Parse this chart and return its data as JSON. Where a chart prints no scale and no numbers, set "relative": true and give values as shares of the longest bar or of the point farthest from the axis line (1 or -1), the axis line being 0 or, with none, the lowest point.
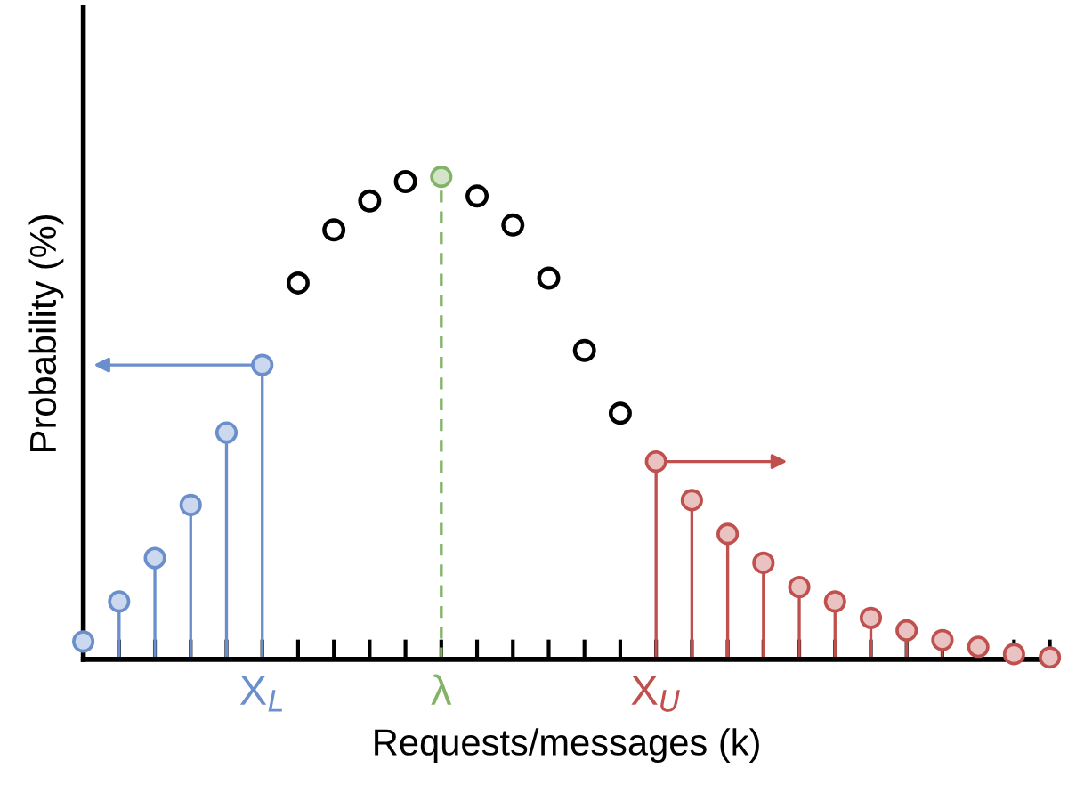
{
  "chart_data": {
    "type": "lollipop",
    "relative": true,
    "xlabel": "Requests/messages (k)",
    "ylabel": "Probability (%)",
    "categories": [
      null,
      null,
      null,
      null,
      null,
      "X$_{L}$",
      null,
      null,
      null,
      null,
      "λ",
      null,
      null,
      null,
      null,
      null,
      "X$_{U}$",
      null,
      null,
      null,
      null,
      null,
      null,
      null,
      null,
      null,
      null,
      null
    ],
    "marker": "circle",
    "grid": false,
    "legend": false,
    "series": [
      {
        "color": "#6b8fcc",
        "values": [
          0.037,
          0.12,
          0.21,
          0.32,
          0.47,
          0.61,
          null,
          null,
          null,
          null,
          null,
          null,
          null,
          null,
          null,
          null,
          null,
          null,
          null,
          null,
          null,
          null,
          null,
          null,
          null,
          null,
          null,
          null
        ]
      },
      {
        "type": "scatter",
        "color": "#000000",
        "values": [
          null,
          null,
          null,
          null,
          null,
          null,
          0.78,
          0.89,
          0.95,
          0.99,
          null,
          0.96,
          0.9,
          0.79,
          0.64,
          0.51,
          null,
          null,
          null,
          null,
          null,
          null,
          null,
          null,
          null,
          null,
          null,
          null
        ]
      },
      {
        "color": "#82b366",
        "line_style": "dashed",
        "values": [
          null,
          null,
          null,
          null,
          null,
          null,
          null,
          null,
          null,
          null,
          1.0,
          null,
          null,
          null,
          null,
          null,
          null,
          null,
          null,
          null,
          null,
          null,
          null,
          null,
          null,
          null,
          null,
          null
        ]
      },
      {
        "color": "#c0504d",
        "values": [
          null,
          null,
          null,
          null,
          null,
          null,
          null,
          null,
          null,
          null,
          null,
          null,
          null,
          null,
          null,
          null,
          0.41,
          0.33,
          0.26,
          0.2,
          0.15,
          0.12,
          0.086,
          0.06,
          0.04,
          0.026,
          0.011,
          0.004
        ]
      }
    ]
  }
}
